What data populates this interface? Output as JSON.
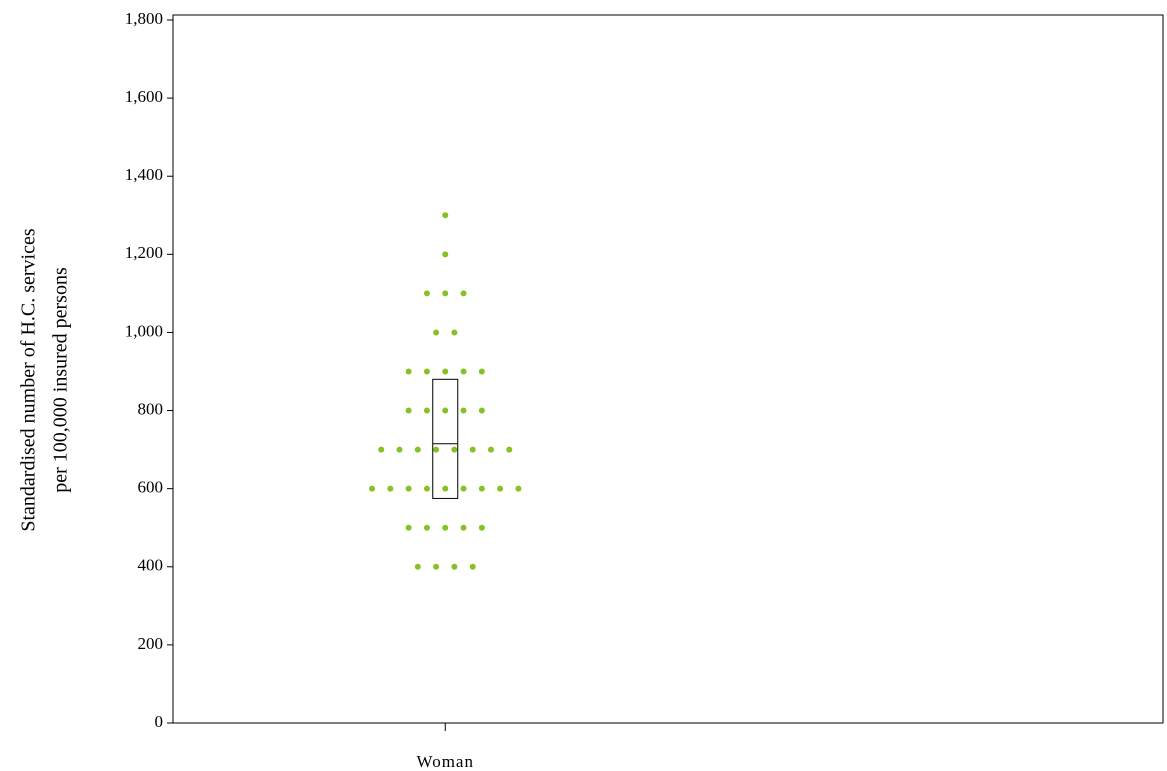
{
  "chart_data": {
    "type": "dotbox",
    "y_label": [
      "Standardised number of H.C. services",
      "per 100,000 insured persons"
    ],
    "categories": [
      "Woman"
    ],
    "series": [
      {
        "name": "Woman",
        "color": "#84c225",
        "values": [
          1300,
          1200,
          1100,
          1100,
          1100,
          1000,
          1000,
          900,
          900,
          900,
          900,
          900,
          800,
          800,
          800,
          800,
          800,
          700,
          700,
          700,
          700,
          700,
          700,
          700,
          700,
          600,
          600,
          600,
          600,
          600,
          600,
          600,
          600,
          600,
          500,
          500,
          500,
          500,
          500,
          400,
          400,
          400,
          400
        ],
        "box": {
          "q1": 575,
          "median": 715,
          "q3": 880
        }
      }
    ],
    "ylim": [
      0,
      1800
    ],
    "yticks": [
      0,
      200,
      400,
      600,
      800,
      {
        "value": 1000,
        "label": "1,000"
      },
      {
        "value": 1200,
        "label": "1,200"
      },
      {
        "value": 1400,
        "label": "1,400"
      },
      {
        "value": 1600,
        "label": "1,600"
      },
      {
        "value": 1800,
        "label": "1,800"
      }
    ]
  }
}
